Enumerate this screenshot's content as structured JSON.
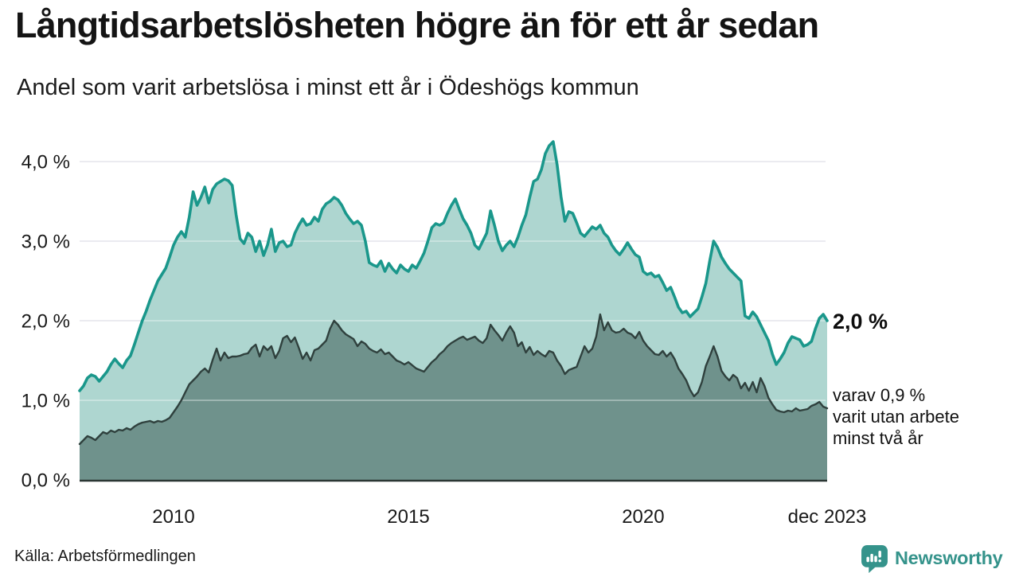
{
  "header": {
    "title": "Långtidsarbetslösheten högre än för ett år sedan",
    "subtitle": "Andel som varit arbetslösa i minst ett år i Ödeshögs kommun"
  },
  "annotations": {
    "latest_value": "2,0 %",
    "note": "varav 0,9 %\nvarit utan arbete\nminst två år"
  },
  "footer": {
    "source": "Källa: Arbetsförmedlingen",
    "logo_text": "Newsworthy",
    "logo_color": "#35938b"
  },
  "chart_data": {
    "type": "area",
    "title": "Långtidsarbetslösheten högre än för ett år sedan",
    "subtitle": "Andel som varit arbetslösa i minst ett år i Ödeshögs kommun",
    "y_unit": "%",
    "frequency": "monthly",
    "x_start": "2008-01",
    "x_end": "2023-12",
    "ylim": [
      0,
      4.0
    ],
    "grid": true,
    "grid_color": "#e2e2e9",
    "grid_overlay_color": "rgba(255,255,255,0.33)",
    "baseline_color": "#2b3734",
    "yticks": [
      {
        "value": 0,
        "label": "0,0 %"
      },
      {
        "value": 1,
        "label": "1,0 %"
      },
      {
        "value": 2,
        "label": "2,0 %"
      },
      {
        "value": 3,
        "label": "3,0 %"
      },
      {
        "value": 4,
        "label": "4,0 %"
      }
    ],
    "xticks": [
      {
        "month_index": 24,
        "label": "2010"
      },
      {
        "month_index": 84,
        "label": "2015"
      },
      {
        "month_index": 144,
        "label": "2020"
      },
      {
        "month_index": 191,
        "label": "dec 2023"
      }
    ],
    "series": [
      {
        "name": "Andel som varit arbetslösa i minst ett år",
        "line_color": "#1a978b",
        "fill_color": "#aed6d0",
        "latest_value": 2.0,
        "latest_value_label": "2,0 %",
        "values": [
          1.12,
          1.18,
          1.28,
          1.32,
          1.3,
          1.24,
          1.3,
          1.36,
          1.45,
          1.52,
          1.46,
          1.41,
          1.5,
          1.56,
          1.7,
          1.85,
          2.0,
          2.12,
          2.26,
          2.38,
          2.5,
          2.58,
          2.66,
          2.8,
          2.95,
          3.05,
          3.12,
          3.05,
          3.3,
          3.62,
          3.45,
          3.55,
          3.68,
          3.48,
          3.65,
          3.72,
          3.75,
          3.78,
          3.76,
          3.7,
          3.33,
          3.03,
          2.97,
          3.1,
          3.05,
          2.87,
          3.0,
          2.82,
          2.95,
          3.15,
          2.87,
          2.98,
          3.0,
          2.93,
          2.95,
          3.1,
          3.2,
          3.28,
          3.2,
          3.22,
          3.3,
          3.25,
          3.4,
          3.47,
          3.5,
          3.55,
          3.52,
          3.45,
          3.35,
          3.28,
          3.22,
          3.25,
          3.2,
          3.0,
          2.73,
          2.7,
          2.68,
          2.75,
          2.62,
          2.72,
          2.65,
          2.6,
          2.7,
          2.65,
          2.62,
          2.7,
          2.66,
          2.75,
          2.85,
          3.0,
          3.17,
          3.22,
          3.2,
          3.23,
          3.35,
          3.45,
          3.53,
          3.4,
          3.28,
          3.2,
          3.1,
          2.95,
          2.9,
          3.0,
          3.1,
          3.38,
          3.2,
          3.0,
          2.88,
          2.95,
          3.0,
          2.93,
          3.05,
          3.2,
          3.33,
          3.55,
          3.75,
          3.78,
          3.9,
          4.1,
          4.2,
          4.25,
          3.96,
          3.56,
          3.25,
          3.37,
          3.35,
          3.23,
          3.1,
          3.06,
          3.12,
          3.18,
          3.15,
          3.2,
          3.1,
          3.05,
          2.95,
          2.88,
          2.83,
          2.9,
          2.98,
          2.9,
          2.83,
          2.8,
          2.62,
          2.58,
          2.6,
          2.55,
          2.57,
          2.48,
          2.38,
          2.42,
          2.3,
          2.17,
          2.1,
          2.12,
          2.05,
          2.1,
          2.15,
          2.3,
          2.47,
          2.75,
          3.0,
          2.92,
          2.8,
          2.72,
          2.65,
          2.6,
          2.55,
          2.5,
          2.06,
          2.03,
          2.11,
          2.05,
          1.95,
          1.85,
          1.75,
          1.58,
          1.45,
          1.52,
          1.6,
          1.72,
          1.8,
          1.78,
          1.76,
          1.68,
          1.7,
          1.74,
          1.9,
          2.03,
          2.08,
          2.0
        ]
      },
      {
        "name": "Varav utan arbete minst två år",
        "line_color": "#2f403d",
        "fill_color": "#6f928c",
        "latest_value": 0.9,
        "latest_value_label": "0,9 %",
        "values": [
          0.45,
          0.5,
          0.55,
          0.53,
          0.5,
          0.55,
          0.6,
          0.58,
          0.62,
          0.6,
          0.63,
          0.62,
          0.65,
          0.63,
          0.67,
          0.7,
          0.72,
          0.73,
          0.74,
          0.72,
          0.74,
          0.73,
          0.75,
          0.78,
          0.85,
          0.92,
          1.0,
          1.1,
          1.2,
          1.25,
          1.3,
          1.36,
          1.4,
          1.35,
          1.51,
          1.65,
          1.5,
          1.6,
          1.53,
          1.55,
          1.55,
          1.56,
          1.58,
          1.59,
          1.66,
          1.7,
          1.55,
          1.68,
          1.63,
          1.68,
          1.53,
          1.62,
          1.78,
          1.81,
          1.73,
          1.79,
          1.66,
          1.52,
          1.6,
          1.5,
          1.63,
          1.65,
          1.7,
          1.75,
          1.9,
          2.0,
          1.95,
          1.88,
          1.83,
          1.8,
          1.77,
          1.68,
          1.74,
          1.71,
          1.65,
          1.62,
          1.6,
          1.64,
          1.58,
          1.6,
          1.55,
          1.5,
          1.48,
          1.45,
          1.48,
          1.44,
          1.4,
          1.38,
          1.36,
          1.42,
          1.48,
          1.52,
          1.58,
          1.62,
          1.68,
          1.72,
          1.75,
          1.78,
          1.8,
          1.76,
          1.78,
          1.8,
          1.75,
          1.72,
          1.78,
          1.95,
          1.88,
          1.82,
          1.75,
          1.85,
          1.93,
          1.85,
          1.68,
          1.73,
          1.6,
          1.67,
          1.57,
          1.62,
          1.58,
          1.55,
          1.62,
          1.6,
          1.5,
          1.43,
          1.33,
          1.38,
          1.4,
          1.42,
          1.55,
          1.68,
          1.6,
          1.65,
          1.8,
          2.08,
          1.88,
          1.98,
          1.88,
          1.85,
          1.86,
          1.9,
          1.85,
          1.83,
          1.78,
          1.86,
          1.75,
          1.68,
          1.63,
          1.58,
          1.57,
          1.62,
          1.55,
          1.6,
          1.52,
          1.4,
          1.33,
          1.25,
          1.13,
          1.05,
          1.1,
          1.23,
          1.43,
          1.55,
          1.68,
          1.55,
          1.37,
          1.3,
          1.25,
          1.32,
          1.28,
          1.15,
          1.22,
          1.12,
          1.23,
          1.1,
          1.28,
          1.18,
          1.03,
          0.95,
          0.88,
          0.86,
          0.85,
          0.87,
          0.86,
          0.9,
          0.87,
          0.88,
          0.89,
          0.93,
          0.95,
          0.98,
          0.92,
          0.9
        ]
      }
    ]
  }
}
